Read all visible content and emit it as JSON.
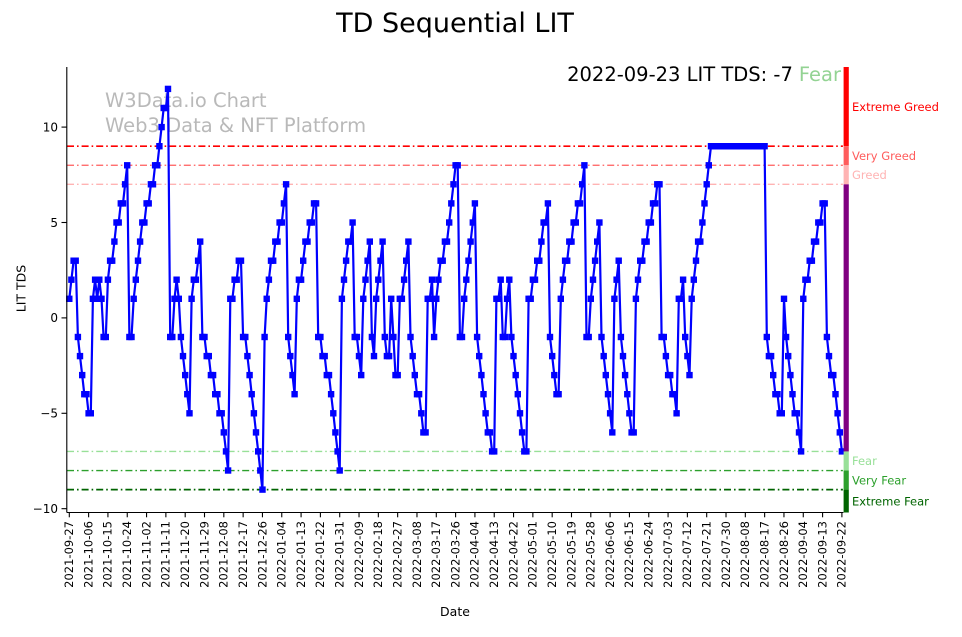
{
  "title": "TD Sequential LIT",
  "annotation": {
    "text": "2022-09-23 LIT TDS: -7",
    "status": "Fear",
    "status_color": "#93d393"
  },
  "watermark": {
    "line1": "W3Data.io Chart",
    "line2": "Web3 Data & NFT Platform"
  },
  "axes": {
    "xlabel": "Date",
    "ylabel": "LIT TDS"
  },
  "chart_data": {
    "type": "line",
    "title": "TD Sequential LIT",
    "xlabel": "Date",
    "ylabel": "LIT TDS",
    "series_name": "LIT TDS",
    "start_date": "2021-09-27",
    "end_date": "2022-09-22",
    "frequency": "daily",
    "line_color": "#0000ff",
    "marker": "square",
    "ylim": [
      -10.2,
      13.15
    ],
    "yticks": [
      10,
      5,
      0,
      -5,
      -10
    ],
    "ytick_labels": [
      "10",
      "5",
      "0",
      "−5",
      "−10"
    ],
    "x_tick_interval_days": 9,
    "tick_labels": [
      "2021-09-27",
      "2021-10-06",
      "2021-10-15",
      "2021-10-24",
      "2021-11-02",
      "2021-11-11",
      "2021-11-20",
      "2021-11-29",
      "2021-12-08",
      "2021-12-17",
      "2021-12-26",
      "2022-01-04",
      "2022-01-13",
      "2022-01-22",
      "2022-01-31",
      "2022-02-09",
      "2022-02-18",
      "2022-02-27",
      "2022-03-08",
      "2022-03-17",
      "2022-03-26",
      "2022-04-04",
      "2022-04-13",
      "2022-04-22",
      "2022-05-01",
      "2022-05-10",
      "2022-05-19",
      "2022-05-28",
      "2022-06-06",
      "2022-06-15",
      "2022-06-24",
      "2022-07-03",
      "2022-07-12",
      "2022-07-21",
      "2022-07-30",
      "2022-08-08",
      "2022-08-17",
      "2022-08-26",
      "2022-09-04",
      "2022-09-13",
      "2022-09-22"
    ],
    "values": [
      1,
      2,
      3,
      3,
      -1,
      -2,
      -3,
      -4,
      -4,
      -5,
      -5,
      1,
      2,
      1,
      2,
      1,
      -1,
      -1,
      2,
      3,
      3,
      4,
      5,
      5,
      6,
      6,
      7,
      8,
      -1,
      -1,
      1,
      2,
      3,
      4,
      5,
      5,
      6,
      6,
      7,
      7,
      8,
      8,
      9,
      10,
      11,
      11,
      12,
      -1,
      -1,
      1,
      2,
      1,
      -1,
      -2,
      -3,
      -4,
      -5,
      1,
      2,
      2,
      3,
      4,
      -1,
      -1,
      -2,
      -2,
      -3,
      -3,
      -4,
      -4,
      -5,
      -5,
      -6,
      -7,
      -8,
      1,
      1,
      2,
      2,
      3,
      3,
      -1,
      -1,
      -2,
      -3,
      -4,
      -5,
      -6,
      -7,
      -8,
      -9,
      -1,
      1,
      2,
      3,
      3,
      4,
      4,
      5,
      5,
      6,
      7,
      -1,
      -2,
      -3,
      -4,
      1,
      2,
      2,
      3,
      4,
      4,
      5,
      5,
      6,
      6,
      -1,
      -1,
      -2,
      -2,
      -3,
      -3,
      -4,
      -5,
      -6,
      -7,
      -8,
      1,
      2,
      3,
      4,
      4,
      5,
      -1,
      -1,
      -2,
      -3,
      1,
      2,
      3,
      4,
      -1,
      -2,
      1,
      2,
      3,
      4,
      -1,
      -2,
      -2,
      1,
      -1,
      -3,
      -3,
      1,
      1,
      2,
      3,
      4,
      -1,
      -2,
      -3,
      -4,
      -4,
      -5,
      -6,
      -6,
      1,
      1,
      2,
      -1,
      1,
      2,
      3,
      3,
      4,
      4,
      5,
      6,
      7,
      8,
      8,
      -1,
      -1,
      1,
      2,
      3,
      4,
      5,
      6,
      -1,
      -2,
      -3,
      -4,
      -5,
      -6,
      -6,
      -7,
      -7,
      1,
      1,
      2,
      -1,
      -1,
      1,
      2,
      -1,
      -2,
      -3,
      -4,
      -5,
      -6,
      -7,
      -7,
      1,
      1,
      2,
      2,
      3,
      3,
      4,
      5,
      5,
      6,
      -1,
      -2,
      -3,
      -4,
      -4,
      1,
      2,
      3,
      3,
      4,
      4,
      5,
      5,
      6,
      6,
      7,
      8,
      -1,
      -1,
      1,
      2,
      3,
      4,
      5,
      -1,
      -2,
      -3,
      -4,
      -5,
      -6,
      1,
      2,
      3,
      -1,
      -2,
      -3,
      -4,
      -5,
      -6,
      -6,
      1,
      2,
      3,
      3,
      4,
      4,
      5,
      5,
      6,
      6,
      7,
      7,
      -1,
      -1,
      -2,
      -3,
      -3,
      -4,
      -4,
      -5,
      1,
      1,
      2,
      -1,
      -2,
      -3,
      1,
      2,
      3,
      4,
      4,
      5,
      6,
      7,
      8,
      9,
      9,
      9,
      9,
      9,
      9,
      9,
      9,
      9,
      9,
      9,
      9,
      9,
      9,
      9,
      9,
      9,
      9,
      9,
      9,
      9,
      9,
      9,
      9,
      9,
      9,
      -1,
      -2,
      -2,
      -3,
      -4,
      -4,
      -5,
      -5,
      1,
      -1,
      -2,
      -3,
      -4,
      -5,
      -5,
      -6,
      -7,
      1,
      2,
      2,
      3,
      3,
      4,
      4,
      5,
      5,
      6,
      6,
      -1,
      -2,
      -3,
      -3,
      -4,
      -5,
      -6,
      -7
    ],
    "threshold_lines": [
      {
        "label": "Extreme Greed",
        "value": 9,
        "color": "#ff0000",
        "width": 1.7
      },
      {
        "label": "Very Greed",
        "value": 8,
        "color": "#ff5c5c",
        "width": 1.3
      },
      {
        "label": "Greed",
        "value": 7,
        "color": "#ffb3b3",
        "width": 1.3
      },
      {
        "label": "Fear",
        "value": -7,
        "color": "#98e098",
        "width": 1.3
      },
      {
        "label": "Very Fear",
        "value": -8,
        "color": "#2ca02c",
        "width": 1.4
      },
      {
        "label": "Extreme Fear",
        "value": -9,
        "color": "#006400",
        "width": 1.8
      }
    ],
    "sentiment_zones": [
      {
        "label": "Extreme Greed",
        "from": 9,
        "to": 13.15,
        "color": "#ff0000"
      },
      {
        "label": "Very Greed",
        "from": 8,
        "to": 9,
        "color": "#ff5c5c"
      },
      {
        "label": "Greed",
        "from": 7,
        "to": 8,
        "color": "#ffb3b3"
      },
      {
        "label": "",
        "from": -7,
        "to": 7,
        "color": "#800080"
      },
      {
        "label": "Fear",
        "from": -8,
        "to": -7,
        "color": "#98e098"
      },
      {
        "label": "Very Fear",
        "from": -9,
        "to": -8,
        "color": "#2ca02c"
      },
      {
        "label": "Extreme Fear",
        "from": -10.2,
        "to": -9,
        "color": "#006400"
      }
    ]
  }
}
